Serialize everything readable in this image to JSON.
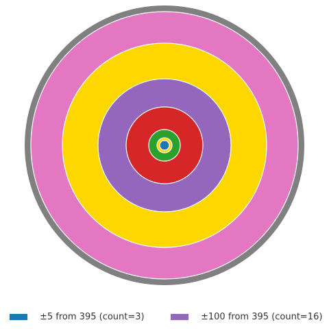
{
  "chart_data": {
    "type": "pie",
    "subtype": "concentric-rings",
    "title": "",
    "rings": [
      {
        "color": "#808080",
        "legend": false
      },
      {
        "color": "#E377C2",
        "legend": false
      },
      {
        "color": "#FFD700",
        "legend": false
      },
      {
        "color": "#9467BD",
        "label": "±100 from 395  (count=16)",
        "legend": true
      },
      {
        "color": "#D62728",
        "legend": false
      },
      {
        "color": "#2CA02C",
        "legend": false
      },
      {
        "color": "#FFD700",
        "legend": false
      },
      {
        "color": "#1F77B4",
        "label": "±5 from 395  (count=3)",
        "legend": true
      }
    ],
    "legend": [
      {
        "label": "±5 from 395  (count=3)",
        "color": "#1F77B4"
      },
      {
        "label": "±100 from 395  (count=16)",
        "color": "#9467BD"
      }
    ],
    "legend_position": "bottom"
  }
}
